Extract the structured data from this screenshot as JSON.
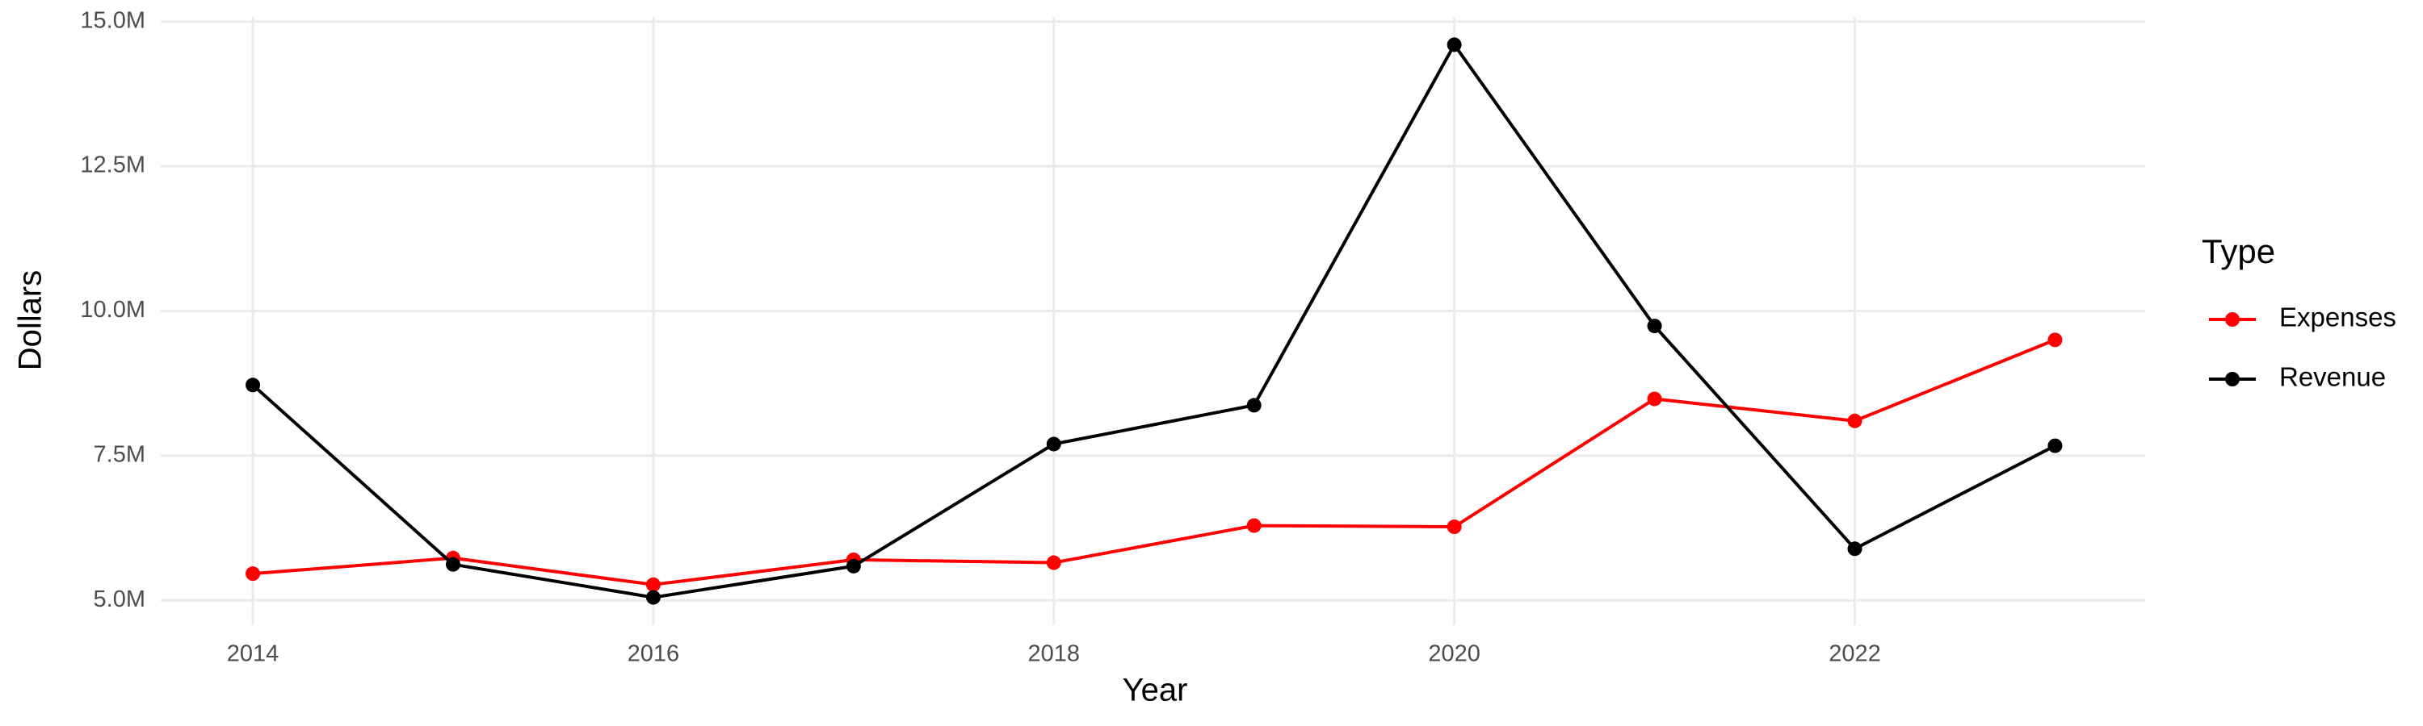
{
  "chart_data": {
    "type": "line",
    "x_label": "Year",
    "y_label": "Dollars",
    "legend_title": "Type",
    "legend": "right",
    "grid": true,
    "x": [
      2014,
      2015,
      2016,
      2017,
      2018,
      2019,
      2020,
      2021,
      2022,
      2023
    ],
    "series": [
      {
        "name": "Expenses",
        "color": "#ff0000",
        "values": [
          5460000,
          5730000,
          5270000,
          5700000,
          5650000,
          6290000,
          6270000,
          8480000,
          8100000,
          9500000
        ]
      },
      {
        "name": "Revenue",
        "color": "#000000",
        "values": [
          8720000,
          5620000,
          5050000,
          5590000,
          7700000,
          8370000,
          14600000,
          9740000,
          5890000,
          7670000
        ]
      }
    ],
    "xlim": [
      2013.54,
      2023.45
    ],
    "xticks": [
      2014,
      2016,
      2018,
      2020,
      2022
    ],
    "ylim": [
      4570000,
      15080000
    ],
    "yticks": [
      {
        "value": 5000000,
        "label": "5.0M"
      },
      {
        "value": 7500000,
        "label": "7.5M"
      },
      {
        "value": 10000000,
        "label": "10.0M"
      },
      {
        "value": 12500000,
        "label": "12.5M"
      },
      {
        "value": 15000000,
        "label": "15.0M"
      }
    ]
  }
}
